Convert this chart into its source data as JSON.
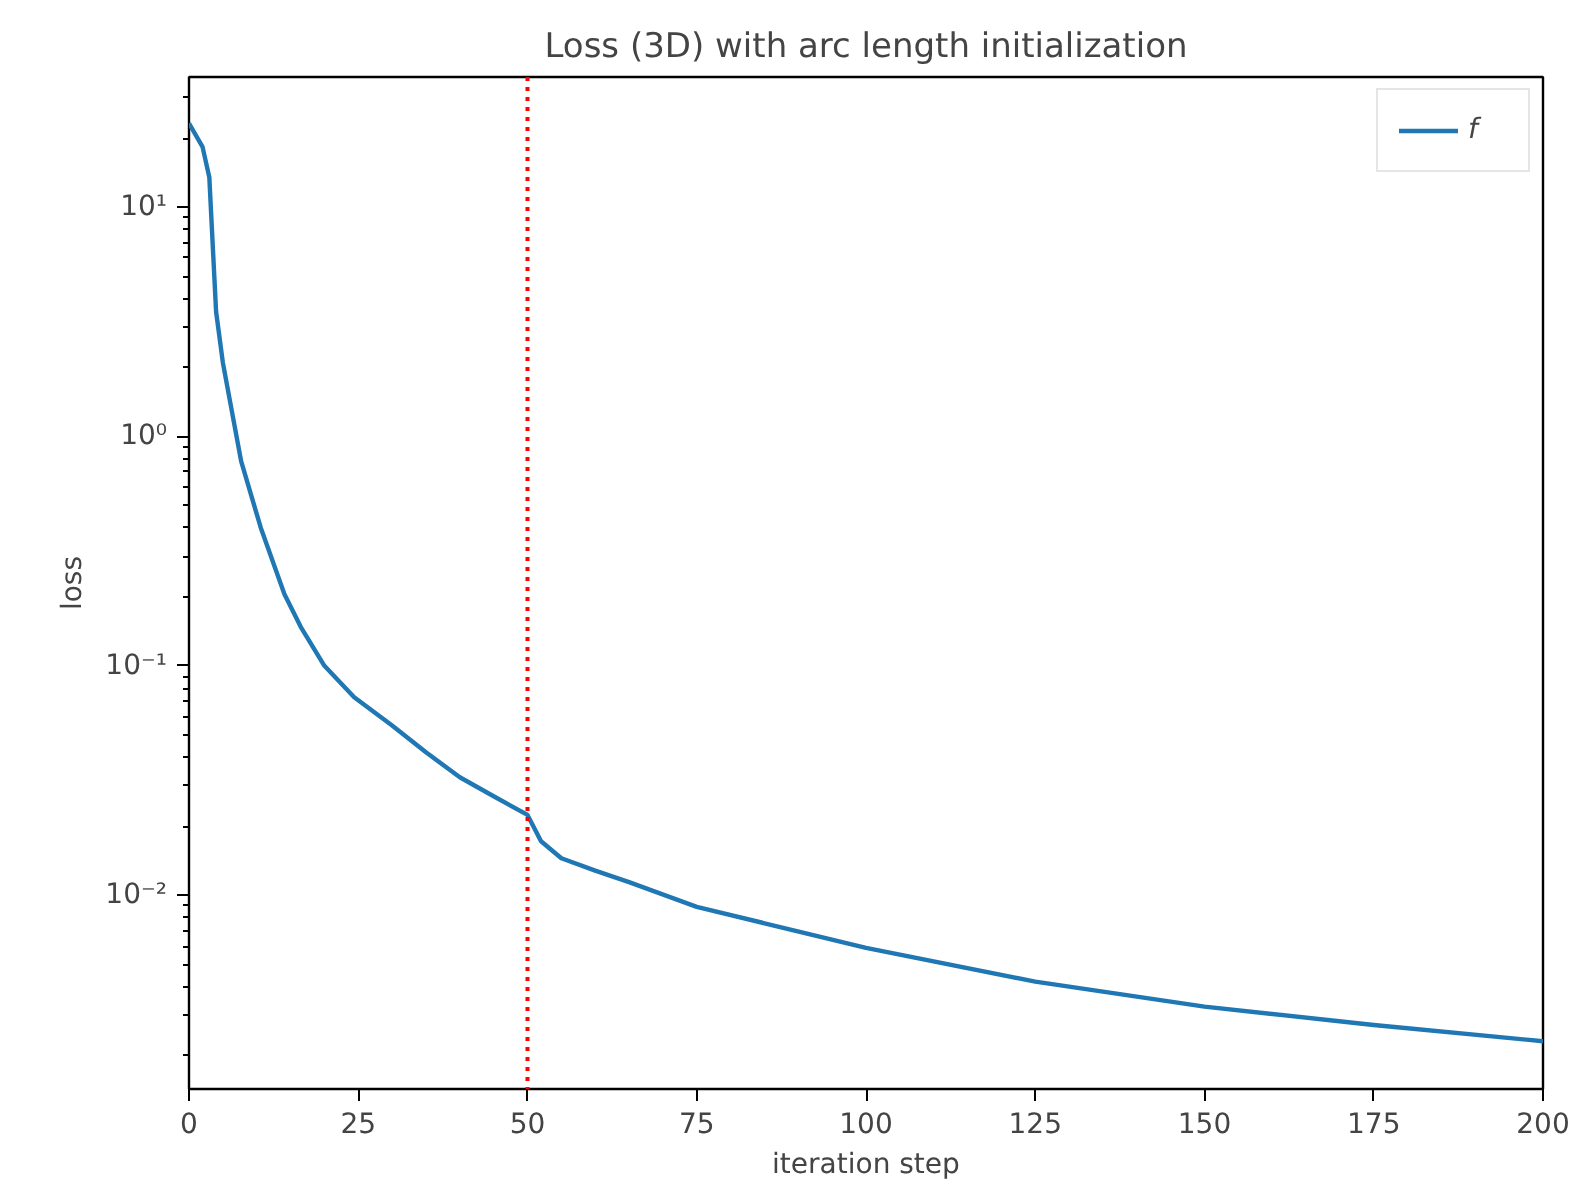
{
  "chart_data": {
    "type": "line",
    "title": "Loss (3D) with arc length initialization",
    "xlabel": "iteration step",
    "ylabel": "loss",
    "log": "y",
    "xlim": [
      0,
      200
    ],
    "xticks": [
      0,
      25,
      50,
      75,
      100,
      125,
      150,
      175,
      200
    ],
    "ylim": [
      0.00143,
      36.9
    ],
    "yticks": [
      {
        "value": 10,
        "label": "10¹"
      },
      {
        "value": 1,
        "label": "10⁰"
      },
      {
        "value": 0.1,
        "label": "10⁻¹"
      },
      {
        "value": 0.01,
        "label": "10⁻²"
      }
    ],
    "grid": false,
    "legend": "top right",
    "line_style": "solid",
    "marker": "none",
    "ref_lines": [
      {
        "axis": "x",
        "value": 50,
        "color": "#ff0000",
        "line_style": "dotted"
      }
    ],
    "series": [
      {
        "name": "f",
        "color": "#1f77b4",
        "x": [
          0,
          2,
          3,
          4,
          5,
          7.7,
          10.6,
          14.1,
          16.5,
          20,
          24.4,
          30,
          35,
          40,
          45,
          50,
          52,
          55,
          60,
          65,
          75,
          100,
          125,
          150,
          175,
          200
        ],
        "values": [
          23.2,
          18.3,
          13.5,
          3.5,
          2.1,
          0.78,
          0.4,
          0.205,
          0.148,
          0.1,
          0.073,
          0.055,
          0.042,
          0.0327,
          0.027,
          0.0224,
          0.0172,
          0.0145,
          0.0128,
          0.0114,
          0.0089,
          0.0059,
          0.0042,
          0.00327,
          0.00272,
          0.00231
        ]
      }
    ]
  }
}
